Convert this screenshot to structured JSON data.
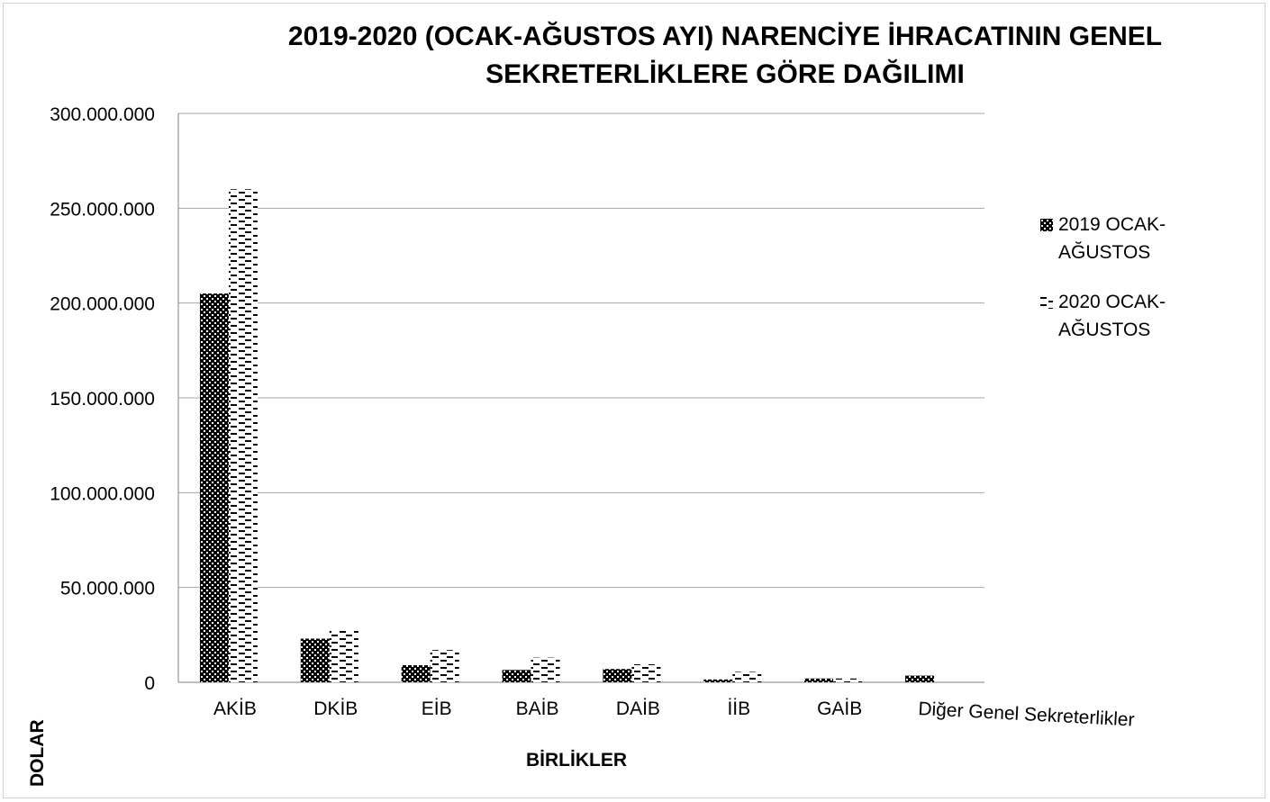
{
  "chart_data": {
    "type": "bar",
    "title_line1": "2019-2020 (OCAK-AĞUSTOS AYI) NARENCİYE İHRACATININ GENEL",
    "title_line2": "SEKRETERLİKLERE  GÖRE DAĞILIMI",
    "xlabel": "BİRLİKLER",
    "ylabel": "DOLAR",
    "categories": [
      "AKİB",
      "DKİB",
      "EİB",
      "BAİB",
      "DAİB",
      "İİB",
      "GAİB",
      "Diğer Genel Sekreterlikler"
    ],
    "series": [
      {
        "name": "2019 OCAK-AĞUSTOS",
        "values": [
          205000000,
          23000000,
          9000000,
          6500000,
          7000000,
          1500000,
          2000000,
          3500000
        ]
      },
      {
        "name": "2020 OCAK-AĞUSTOS",
        "values": [
          260000000,
          28000000,
          17000000,
          13000000,
          9500000,
          5500000,
          2000000,
          0
        ]
      }
    ],
    "ylim": [
      0,
      300000000
    ],
    "yticks": [
      0,
      50000000,
      100000000,
      150000000,
      200000000,
      250000000,
      300000000
    ],
    "ytick_labels": [
      "0",
      "50.000.000",
      "100.000.000",
      "150.000.000",
      "200.000.000",
      "250.000.000",
      "300.000.000"
    ],
    "grid": true,
    "legend_position": "right",
    "colors": {
      "bar_2019": "#000000",
      "bar_2020": "#000000",
      "grid": "#a6a6a6",
      "axis": "#808080"
    }
  }
}
